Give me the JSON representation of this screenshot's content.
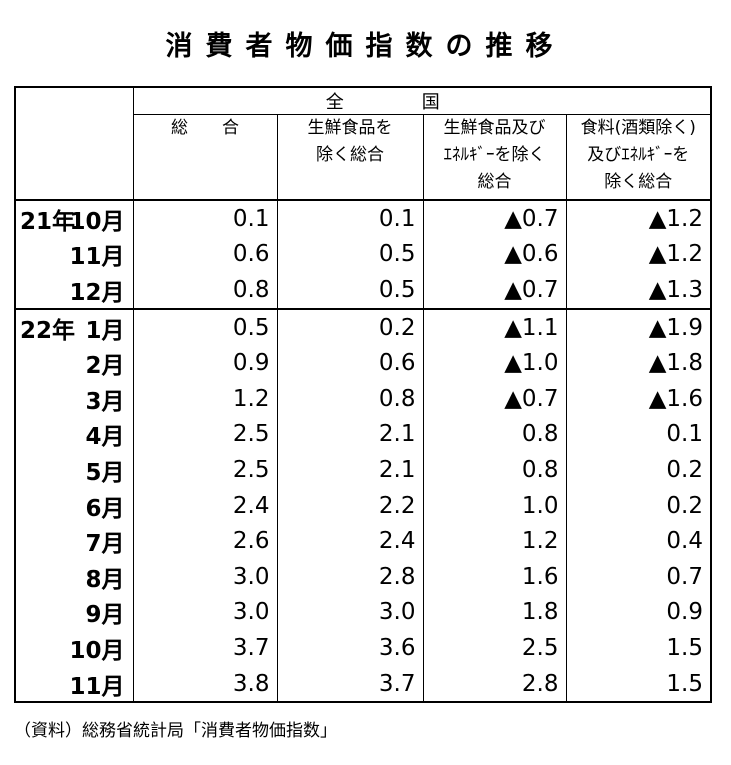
{
  "title": "消費者物価指数の推移",
  "header": {
    "group": "全国",
    "columns": [
      "総合",
      "生鮮食品を\n除く総合",
      "生鮮食品及び\nｴﾈﾙｷﾞｰを除く\n総合",
      "食料(酒類除く)\n及びｴﾈﾙｷﾞｰを\n除く総合"
    ]
  },
  "rows": [
    {
      "year": "21年",
      "month": "10月",
      "values": [
        "0.1",
        "0.1",
        "▲0.7",
        "▲1.2"
      ]
    },
    {
      "year": "",
      "month": "11月",
      "values": [
        "0.6",
        "0.5",
        "▲0.6",
        "▲1.2"
      ]
    },
    {
      "year": "",
      "month": "12月",
      "values": [
        "0.8",
        "0.5",
        "▲0.7",
        "▲1.3"
      ]
    },
    {
      "year": "22年",
      "month": "1月",
      "values": [
        "0.5",
        "0.2",
        "▲1.1",
        "▲1.9"
      ]
    },
    {
      "year": "",
      "month": "2月",
      "values": [
        "0.9",
        "0.6",
        "▲1.0",
        "▲1.8"
      ]
    },
    {
      "year": "",
      "month": "3月",
      "values": [
        "1.2",
        "0.8",
        "▲0.7",
        "▲1.6"
      ]
    },
    {
      "year": "",
      "month": "4月",
      "values": [
        "2.5",
        "2.1",
        "0.8",
        "0.1"
      ]
    },
    {
      "year": "",
      "month": "5月",
      "values": [
        "2.5",
        "2.1",
        "0.8",
        "0.2"
      ]
    },
    {
      "year": "",
      "month": "6月",
      "values": [
        "2.4",
        "2.2",
        "1.0",
        "0.2"
      ]
    },
    {
      "year": "",
      "month": "7月",
      "values": [
        "2.6",
        "2.4",
        "1.2",
        "0.4"
      ]
    },
    {
      "year": "",
      "month": "8月",
      "values": [
        "3.0",
        "2.8",
        "1.6",
        "0.7"
      ]
    },
    {
      "year": "",
      "month": "9月",
      "values": [
        "3.0",
        "3.0",
        "1.8",
        "0.9"
      ]
    },
    {
      "year": "",
      "month": "10月",
      "values": [
        "3.7",
        "3.6",
        "2.5",
        "1.5"
      ]
    },
    {
      "year": "",
      "month": "11月",
      "values": [
        "3.8",
        "3.7",
        "2.8",
        "1.5"
      ]
    }
  ],
  "source": "（資料）総務省統計局「消費者物価指数」"
}
